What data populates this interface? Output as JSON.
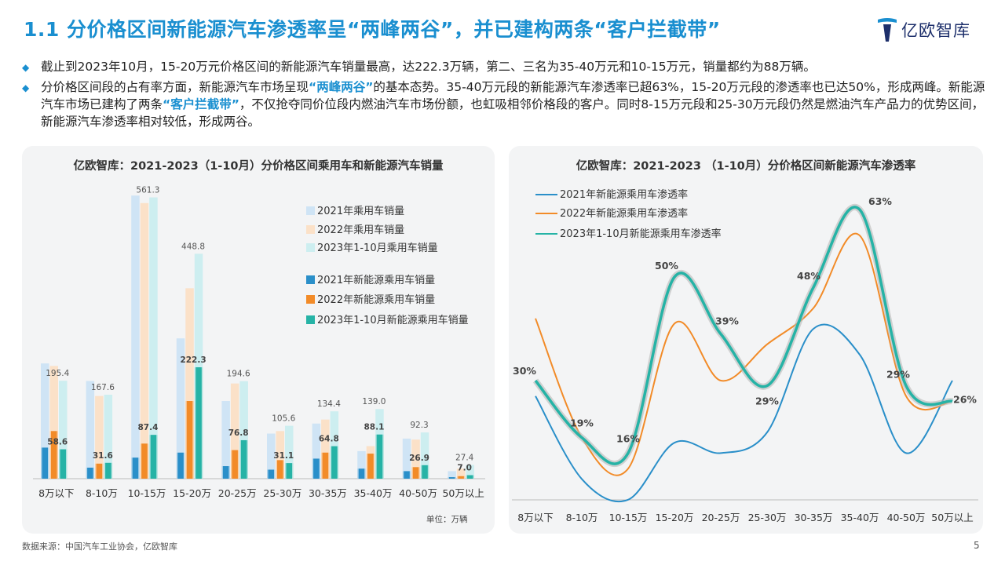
{
  "page": {
    "title": "1.1 分价格区间新能源汽车渗透率呈“两峰两谷”，并已建构两条“客户拦截带”",
    "logo_text": "亿欧智库",
    "bullets": [
      {
        "text": "截止到2023年10月，15-20万元价格区间的新能源汽车销量最高，达222.3万辆，第二、三名为35-40万元和10-15万元，销量都约为88万辆。"
      },
      {
        "part1": "分价格区间段的占有率方面，新能源汽车市场呈现",
        "hl1": "“两峰两谷”",
        "part2": "的基本态势。35-40万元段的新能源汽车渗透率已超63%，15-20万元段的渗透率也已达50%，形成两峰。新能源汽车市场已建构了两条",
        "hl2": "“客户拦截带”",
        "part3": "，不仅抢夺同价位段内燃油汽车市场份额，也虹吸相邻价格段的客户。同时8-15万元段和25-30万元段仍然是燃油汽车产品力的优势区间，新能源汽车渗透率相对较低，形成两谷。"
      }
    ],
    "source": "数据来源：中国汽车工业协会，亿欧智库",
    "page_number": "5"
  },
  "colors": {
    "accent": "#1a8fd0",
    "nev2021": "#2a8fc9",
    "nev2022": "#f28b28",
    "nev2023": "#26b3a6",
    "pv2021": "#cfe4f5",
    "pv2022": "#fbe1c8",
    "pv2023": "#cdeef0"
  },
  "chart_data": [
    {
      "type": "bar",
      "title": "亿欧智库：2021-2023（1-10月）分价格区间乘用车和新能源汽车销量",
      "unit_label": "单位：万辆",
      "categories": [
        "8万以下",
        "8-10万",
        "10-15万",
        "15-20万",
        "20-25万",
        "25-30万",
        "30-35万",
        "35-40万",
        "40-50万",
        "50万以上"
      ],
      "series": [
        {
          "name": "2021年乘用车销量",
          "values": [
            230,
            195,
            565,
            280,
            155,
            90,
            110,
            55,
            80,
            15
          ]
        },
        {
          "name": "2022年乘用车销量",
          "values": [
            225,
            165,
            550,
            380,
            190,
            95,
            118,
            65,
            78,
            20
          ]
        },
        {
          "name": "2023年1-10月乘用车销量",
          "values": [
            195.4,
            167.6,
            561.3,
            448.8,
            194.6,
            105.6,
            134.4,
            139.0,
            92.3,
            27.4
          ]
        },
        {
          "name": "2021年新能源乘用车销量",
          "values": [
            62,
            22,
            42,
            52,
            25,
            18,
            40,
            20,
            15,
            3
          ]
        },
        {
          "name": "2022年新能源乘用车销量",
          "values": [
            95,
            30,
            70,
            155,
            57,
            37,
            52,
            50,
            23,
            5
          ]
        },
        {
          "name": "2023年1-10月新能源乘用车销量",
          "values": [
            58.6,
            31.6,
            87.4,
            222.3,
            76.8,
            31.1,
            64.8,
            88.1,
            26.9,
            7.0
          ]
        }
      ],
      "labeled_totals": [
        "195.4",
        "167.6",
        "561.3",
        "448.8",
        "194.6",
        "105.6",
        "134.4",
        "139.0",
        "92.3",
        "27.4"
      ],
      "labeled_nev": [
        "58.6",
        "31.6",
        "87.4",
        "222.3",
        "76.8",
        "31.1",
        "64.8",
        "88.1",
        "26.9",
        "7.0"
      ],
      "ylim": [
        0,
        570
      ],
      "legend": "top-right"
    },
    {
      "type": "line",
      "title": "亿欧智库：2021-2023 （1-10月）分价格区间新能源汽车渗透率",
      "categories": [
        "8万以下",
        "8-10万",
        "10-15万",
        "15-20万",
        "20-25万",
        "25-30万",
        "30-35万",
        "35-40万",
        "40-50万",
        "50万以上"
      ],
      "series": [
        {
          "name": "2021年新能源乘用车渗透率",
          "values": [
            27,
            11,
            7,
            18,
            16,
            20,
            40,
            35,
            16,
            30
          ]
        },
        {
          "name": "2022年新能源乘用车渗透率",
          "values": [
            42,
            19,
            13,
            41,
            30,
            37,
            44,
            58,
            27,
            26
          ]
        },
        {
          "name": "2023年1-10月新能源乘用车渗透率",
          "values": [
            30,
            19,
            16,
            50,
            39,
            29,
            48,
            63,
            29,
            26
          ]
        }
      ],
      "labels_2023": [
        "30%",
        "19%",
        "16%",
        "50%",
        "39%",
        "29%",
        "48%",
        "63%",
        "29%",
        "26%"
      ],
      "ylim": [
        0,
        70
      ],
      "legend": "top-left"
    }
  ]
}
